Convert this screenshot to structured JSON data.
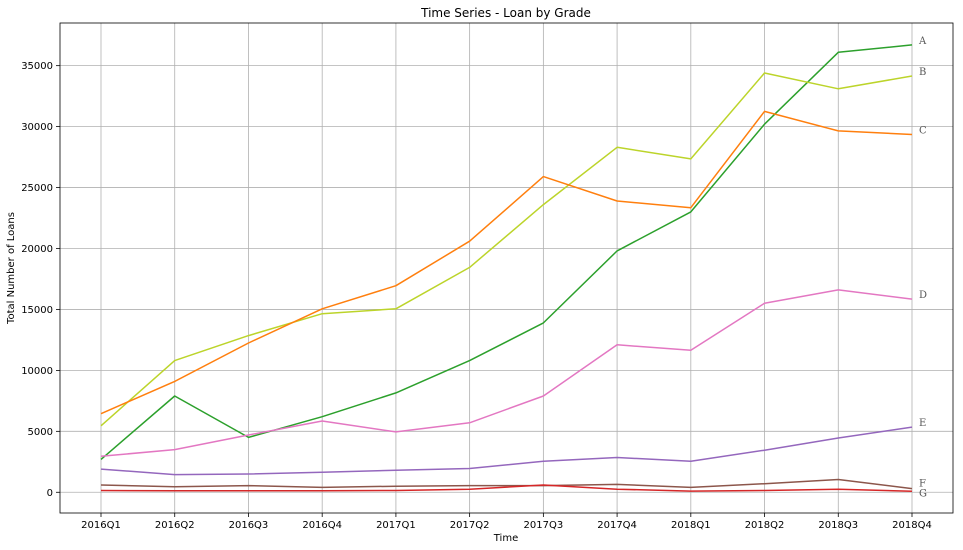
{
  "chart_data": {
    "type": "line",
    "title": "Time Series - Loan by Grade",
    "xlabel": "Time",
    "ylabel": "Total Number of Loans",
    "categories": [
      "2016Q1",
      "2016Q2",
      "2016Q3",
      "2016Q4",
      "2017Q1",
      "2017Q2",
      "2017Q3",
      "2017Q4",
      "2018Q1",
      "2018Q2",
      "2018Q3",
      "2018Q4"
    ],
    "ylim": [
      -1700,
      38500
    ],
    "yticks": [
      0,
      5000,
      10000,
      15000,
      20000,
      25000,
      30000,
      35000
    ],
    "grid": true,
    "series": [
      {
        "name": "A",
        "color": "#2ca02c",
        "values": [
          2700,
          7900,
          4500,
          6200,
          8150,
          10800,
          13900,
          19800,
          23000,
          30200,
          36100,
          36700
        ]
      },
      {
        "name": "B",
        "color": "#bcd42a",
        "values": [
          5450,
          10800,
          12850,
          14650,
          15050,
          18450,
          23600,
          28300,
          27350,
          34400,
          33100,
          34150
        ]
      },
      {
        "name": "C",
        "color": "#ff7f0e",
        "values": [
          6450,
          9100,
          12250,
          15050,
          16950,
          20600,
          25900,
          23900,
          23350,
          31250,
          29650,
          29350
        ]
      },
      {
        "name": "D",
        "color": "#e377c2",
        "values": [
          2950,
          3500,
          4700,
          5850,
          4950,
          5700,
          7900,
          12100,
          11650,
          15500,
          16600,
          15850
        ]
      },
      {
        "name": "E",
        "color": "#9467bd",
        "values": [
          1900,
          1450,
          1500,
          1650,
          1800,
          1950,
          2550,
          2850,
          2550,
          3450,
          4450,
          5350
        ]
      },
      {
        "name": "F",
        "color": "#8c564b",
        "values": [
          600,
          450,
          550,
          400,
          500,
          550,
          550,
          650,
          400,
          700,
          1050,
          300
        ]
      },
      {
        "name": "G",
        "color": "#d62728",
        "values": [
          150,
          120,
          130,
          120,
          150,
          250,
          600,
          250,
          100,
          150,
          250,
          80
        ]
      }
    ]
  }
}
